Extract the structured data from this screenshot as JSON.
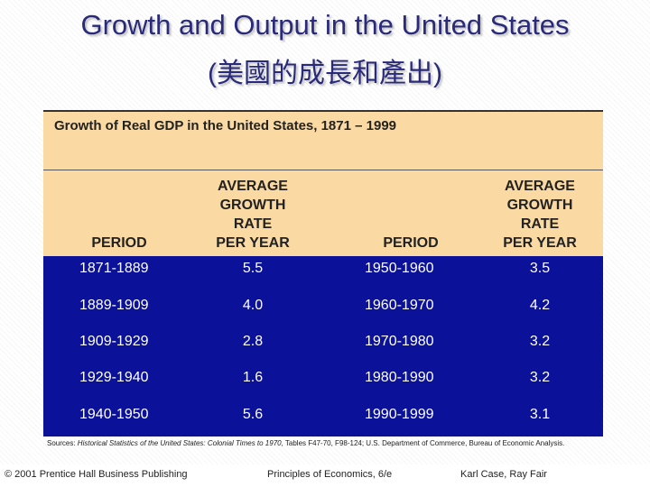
{
  "slide": {
    "title_line1": "Growth and Output in the United States",
    "title_line2": "(美國的成長和產出)"
  },
  "table": {
    "caption": "Growth of Real GDP in the United States, 1871 – 1999",
    "headers": {
      "period": "PERIOD",
      "avg_rate": [
        "AVERAGE",
        "GROWTH",
        "RATE",
        "PER YEAR"
      ]
    },
    "rows": [
      {
        "period_a": "1871-1889",
        "rate_a": "5.5",
        "period_b": "1950-1960",
        "rate_b": "3.5"
      },
      {
        "period_a": "1889-1909",
        "rate_a": "4.0",
        "period_b": "1960-1970",
        "rate_b": "4.2"
      },
      {
        "period_a": "1909-1929",
        "rate_a": "2.8",
        "period_b": "1970-1980",
        "rate_b": "3.2"
      },
      {
        "period_a": "1929-1940",
        "rate_a": "1.6",
        "period_b": "1980-1990",
        "rate_b": "3.2"
      },
      {
        "period_a": "1940-1950",
        "rate_a": "5.6",
        "period_b": "1990-1999",
        "rate_b": "3.1"
      }
    ],
    "source": {
      "prefix": "Sources: ",
      "title_italic": "Historical Statistics of the United States: Colonial Times to 1970",
      "rest": ", Tables F47-70, F98-124; U.S. Department of Commerce, Bureau of Economic Analysis."
    }
  },
  "footer": {
    "copyright": "© 2001 Prentice Hall Business Publishing",
    "book": "Principles of Economics, 6/e",
    "authors": "Karl Case, Ray Fair"
  },
  "colors": {
    "header_fill": "#fad9a3",
    "body_fill": "#0b1299",
    "title_text": "#2a2a7a"
  }
}
